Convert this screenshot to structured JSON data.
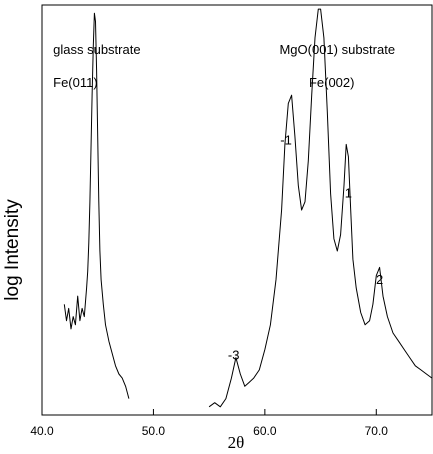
{
  "chart_data": {
    "type": "line",
    "xlabel": "2θ",
    "ylabel": "log Intensity",
    "xlim": [
      40.0,
      75.0
    ],
    "ylim": [
      0,
      100
    ],
    "y_scale": "log",
    "y_ticks_shown": false,
    "grid": false,
    "x_ticks": [
      40.0,
      50.0,
      60.0,
      70.0
    ],
    "x_tick_labels": [
      "40.0",
      "50.0",
      "60.0",
      "70.0"
    ],
    "annotations": [
      {
        "text": "glass substrate",
        "x": 41.0,
        "y": 88.0,
        "anchor": "start"
      },
      {
        "text": "Fe(011)",
        "x": 41.0,
        "y": 80.0,
        "anchor": "start"
      },
      {
        "text": "MgO(001) substrate",
        "x": 66.5,
        "y": 88.0,
        "anchor": "middle"
      },
      {
        "text": "Fe(002)",
        "x": 66.0,
        "y": 80.0,
        "anchor": "middle"
      },
      {
        "text": "-1",
        "x": 61.9,
        "y": 66.0,
        "anchor": "middle"
      },
      {
        "text": "1",
        "x": 67.5,
        "y": 53.0,
        "anchor": "middle"
      },
      {
        "text": "2",
        "x": 70.3,
        "y": 32.0,
        "anchor": "middle"
      },
      {
        "text": "-3",
        "x": 57.2,
        "y": 13.5,
        "anchor": "middle"
      }
    ],
    "series": [
      {
        "x": [
          42.0,
          42.2,
          42.4,
          42.6,
          42.8,
          43.0,
          43.2,
          43.4,
          43.6,
          43.8,
          44.0,
          44.1,
          44.2,
          44.3,
          44.4,
          44.5,
          44.6,
          44.7,
          44.8,
          44.9,
          45.0,
          45.1,
          45.2,
          45.3,
          45.5,
          45.7,
          46.0,
          46.3,
          46.6,
          46.9,
          47.2,
          47.5,
          47.8
        ],
        "y": [
          27,
          23,
          26,
          21,
          24,
          22,
          29,
          23,
          26,
          24,
          31,
          35,
          42,
          52,
          65,
          78,
          90,
          98,
          96,
          84,
          68,
          52,
          40,
          33,
          27,
          22,
          18,
          15,
          12,
          10,
          9,
          7,
          4
        ]
      },
      {
        "x": [
          55.0,
          55.5,
          56.0,
          56.5,
          57.0,
          57.4,
          57.8,
          58.2,
          58.6,
          59.0,
          59.5,
          60.0,
          60.5,
          61.0,
          61.5,
          61.8,
          62.1,
          62.4,
          62.7,
          63.0,
          63.3,
          63.6,
          63.9,
          64.2,
          64.5,
          64.8,
          65.0,
          65.3,
          65.6,
          65.9,
          66.2,
          66.5,
          66.8,
          67.1,
          67.3,
          67.5,
          67.7,
          67.9,
          68.2,
          68.6,
          69.0,
          69.4,
          69.7,
          70.0,
          70.3,
          70.6,
          71.0,
          71.5,
          72.0,
          72.5,
          73.0,
          73.5,
          74.0,
          74.5,
          75.0
        ],
        "y": [
          2,
          3,
          2,
          4,
          9,
          14,
          10,
          7,
          8,
          9,
          11,
          16,
          22,
          33,
          50,
          66,
          76,
          78,
          68,
          56,
          50,
          52,
          62,
          78,
          92,
          99,
          99,
          92,
          74,
          54,
          43,
          40,
          44,
          56,
          66,
          63,
          50,
          38,
          31,
          25,
          22,
          23,
          27,
          34,
          36,
          29,
          24,
          20,
          18,
          16,
          14,
          12,
          11,
          10,
          9
        ]
      }
    ]
  }
}
